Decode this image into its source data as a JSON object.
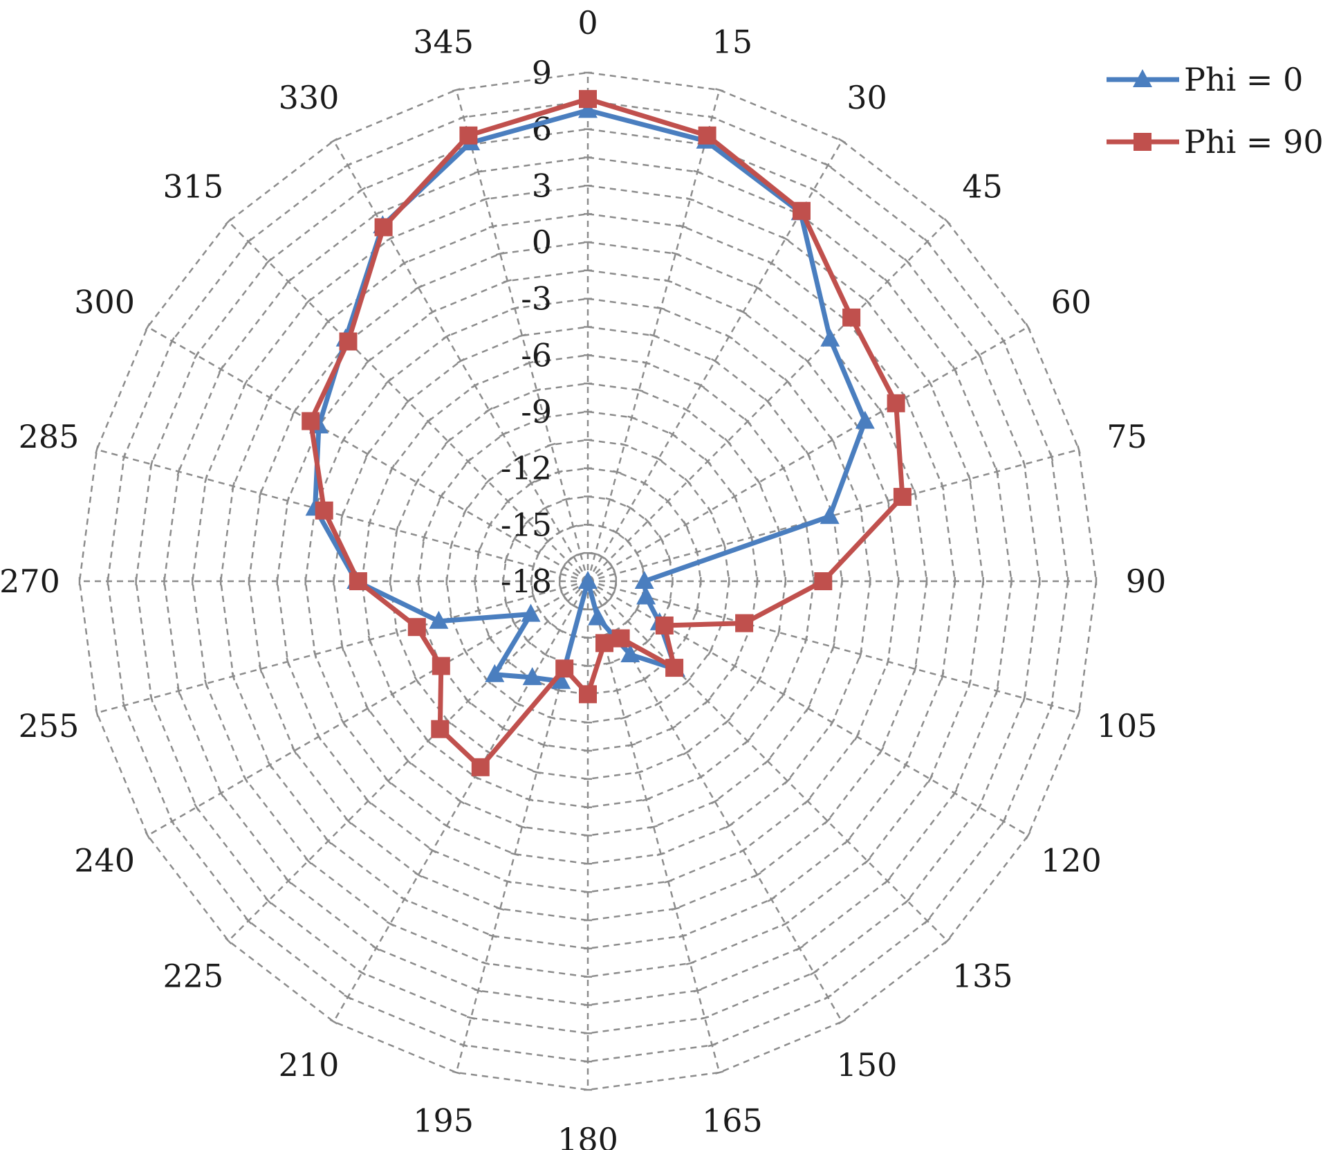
{
  "chart_data": {
    "type": "polar-line",
    "title": "",
    "angular_unit": "deg",
    "angular_direction": "clockwise",
    "zero_angle": "top",
    "angle_ticks": [
      "0",
      "15",
      "30",
      "45",
      "60",
      "75",
      "90",
      "105",
      "120",
      "135",
      "150",
      "165",
      "180",
      "195",
      "210",
      "225",
      "240",
      "255",
      "270",
      "285",
      "300",
      "315",
      "330",
      "345"
    ],
    "radial_ticks": [
      "9",
      "6",
      "3",
      "0",
      "-3",
      "-6",
      "-9",
      "-12",
      "-15",
      "-18"
    ],
    "rlim": [
      -18,
      9
    ],
    "grid": true,
    "legend_position": "top-right",
    "series": [
      {
        "name": "Phi = 0",
        "color": "#4a7ebf",
        "marker": "triangle",
        "points": [
          {
            "angle": 0,
            "value": 7.0
          },
          {
            "angle": 15,
            "value": 6.2
          },
          {
            "angle": 30,
            "value": 4.6
          },
          {
            "angle": 45,
            "value": 0.2
          },
          {
            "angle": 60,
            "value": -1.0
          },
          {
            "angle": 75,
            "value": -4.7
          },
          {
            "angle": 90,
            "value": -15.0
          },
          {
            "angle": 105,
            "value": -14.8
          },
          {
            "angle": 120,
            "value": -13.6
          },
          {
            "angle": 135,
            "value": -11.4
          },
          {
            "angle": 150,
            "value": -13.5
          },
          {
            "angle": 165,
            "value": -16.0
          },
          {
            "angle": 180,
            "value": -18.0
          },
          {
            "angle": 195,
            "value": -12.5
          },
          {
            "angle": 210,
            "value": -12.1
          },
          {
            "angle": 225,
            "value": -11.0
          },
          {
            "angle": 240,
            "value": -14.5
          },
          {
            "angle": 255,
            "value": -9.8
          },
          {
            "angle": 270,
            "value": -5.7
          },
          {
            "angle": 285,
            "value": -3.0
          },
          {
            "angle": 300,
            "value": -1.5
          },
          {
            "angle": 315,
            "value": 0.2
          },
          {
            "angle": 330,
            "value": 3.8
          },
          {
            "angle": 345,
            "value": 6.1
          }
        ]
      },
      {
        "name": "Phi = 90",
        "color": "#c0504d",
        "marker": "square",
        "points": [
          {
            "angle": 0,
            "value": 7.6
          },
          {
            "angle": 15,
            "value": 6.5
          },
          {
            "angle": 30,
            "value": 4.7
          },
          {
            "angle": 45,
            "value": 1.8
          },
          {
            "angle": 60,
            "value": 0.9
          },
          {
            "angle": 75,
            "value": -0.7
          },
          {
            "angle": 90,
            "value": -5.5
          },
          {
            "angle": 105,
            "value": -9.4
          },
          {
            "angle": 120,
            "value": -13.3
          },
          {
            "angle": 135,
            "value": -11.5
          },
          {
            "angle": 150,
            "value": -14.5
          },
          {
            "angle": 165,
            "value": -14.6
          },
          {
            "angle": 180,
            "value": -12.0
          },
          {
            "angle": 195,
            "value": -13.2
          },
          {
            "angle": 210,
            "value": -6.6
          },
          {
            "angle": 225,
            "value": -6.9
          },
          {
            "angle": 240,
            "value": -9.0
          },
          {
            "angle": 255,
            "value": -8.6
          },
          {
            "angle": 270,
            "value": -5.8
          },
          {
            "angle": 285,
            "value": -3.5
          },
          {
            "angle": 300,
            "value": -1.0
          },
          {
            "angle": 315,
            "value": 0.0
          },
          {
            "angle": 330,
            "value": 3.7
          },
          {
            "angle": 345,
            "value": 6.5
          }
        ]
      }
    ]
  }
}
